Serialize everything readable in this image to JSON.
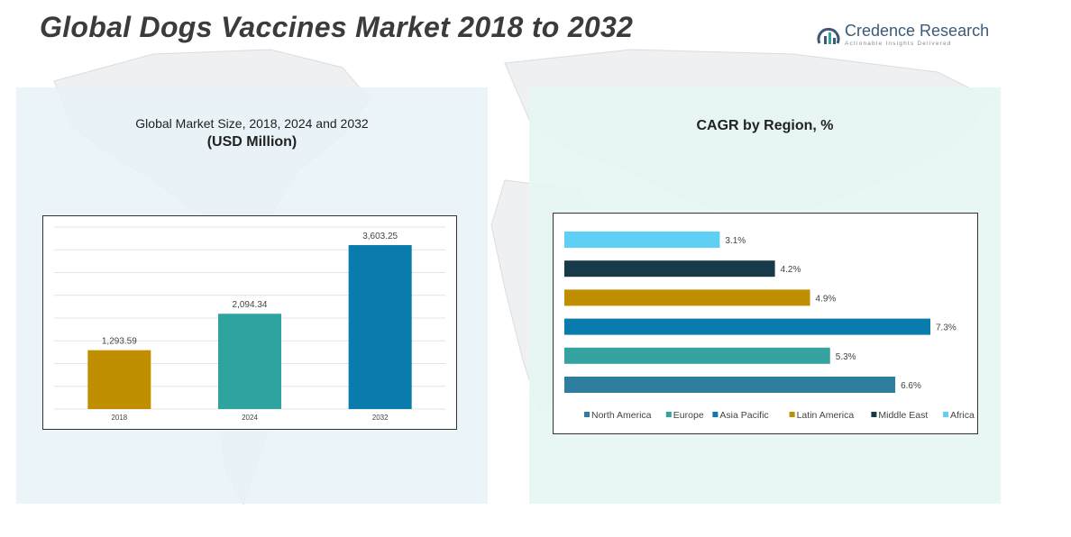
{
  "title": "Global Dogs Vaccines Market 2018 to 2032",
  "logo": {
    "name": "Credence Research",
    "tagline": "Actionable Insights Delivered",
    "icon": "credence-logo-icon"
  },
  "left_panel": {
    "title_line1": "Global Market Size, 2018, 2024 and 2032",
    "title_line2": "(USD Million)"
  },
  "right_panel": {
    "title": "CAGR by Region, %"
  },
  "chart_data": [
    {
      "type": "bar",
      "title": "Global Market Size, 2018, 2024 and 2032 (USD Million)",
      "categories": [
        "2018",
        "2024",
        "2032"
      ],
      "values": [
        1293.59,
        2094.34,
        3603.25
      ],
      "labels": [
        "1,293.59",
        "2,094.34",
        "3,603.25"
      ],
      "colors": [
        "#bf8f00",
        "#2ea3a0",
        "#0a7bad"
      ],
      "ylim": [
        0,
        4000
      ],
      "grid": true
    },
    {
      "type": "bar",
      "orientation": "horizontal",
      "title": "CAGR by Region, %",
      "series": [
        {
          "name": "North America",
          "value": 6.6,
          "label": "6.6%",
          "color": "#2e7ea0"
        },
        {
          "name": "Europe",
          "value": 5.3,
          "label": "5.3%",
          "color": "#35a3a0"
        },
        {
          "name": "Asia Pacific",
          "value": 7.3,
          "label": "7.3%",
          "color": "#0a7bad"
        },
        {
          "name": "Latin America",
          "value": 4.9,
          "label": "4.9%",
          "color": "#bf8f00"
        },
        {
          "name": "Middle East",
          "value": 4.2,
          "label": "4.2%",
          "color": "#163a4a"
        },
        {
          "name": "Africa",
          "value": 3.1,
          "label": "3.1%",
          "color": "#5ecff5"
        }
      ],
      "xlim": [
        0,
        7.3
      ],
      "legend": "bottom"
    }
  ]
}
